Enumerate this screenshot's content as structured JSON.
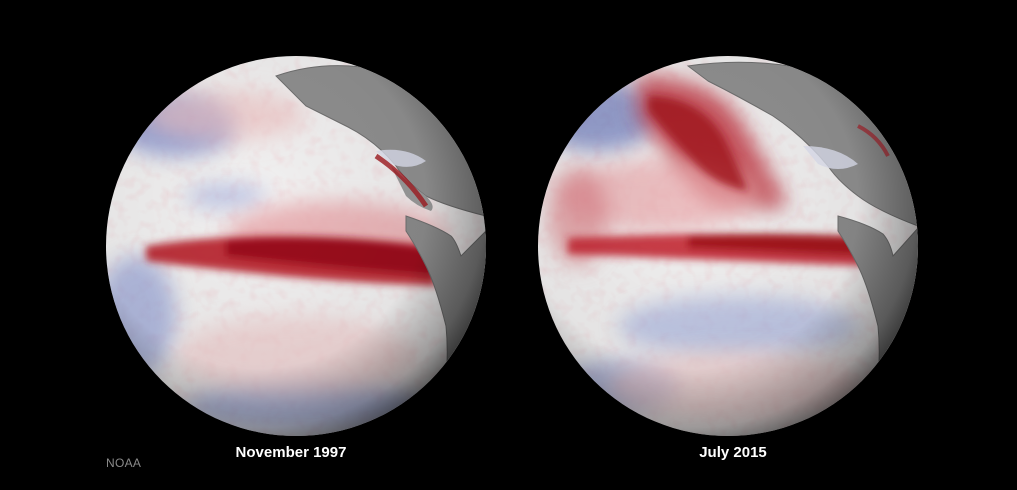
{
  "globes": [
    {
      "label": "November 1997"
    },
    {
      "label": "July 2015"
    }
  ],
  "credit": "NOAA",
  "colors": {
    "background": "#000000",
    "warm_anomaly": "#a3141e",
    "cool_anomaly": "#4a5bb0",
    "neutral_ocean": "#f1f0f0",
    "land": "#8f8f8f"
  }
}
